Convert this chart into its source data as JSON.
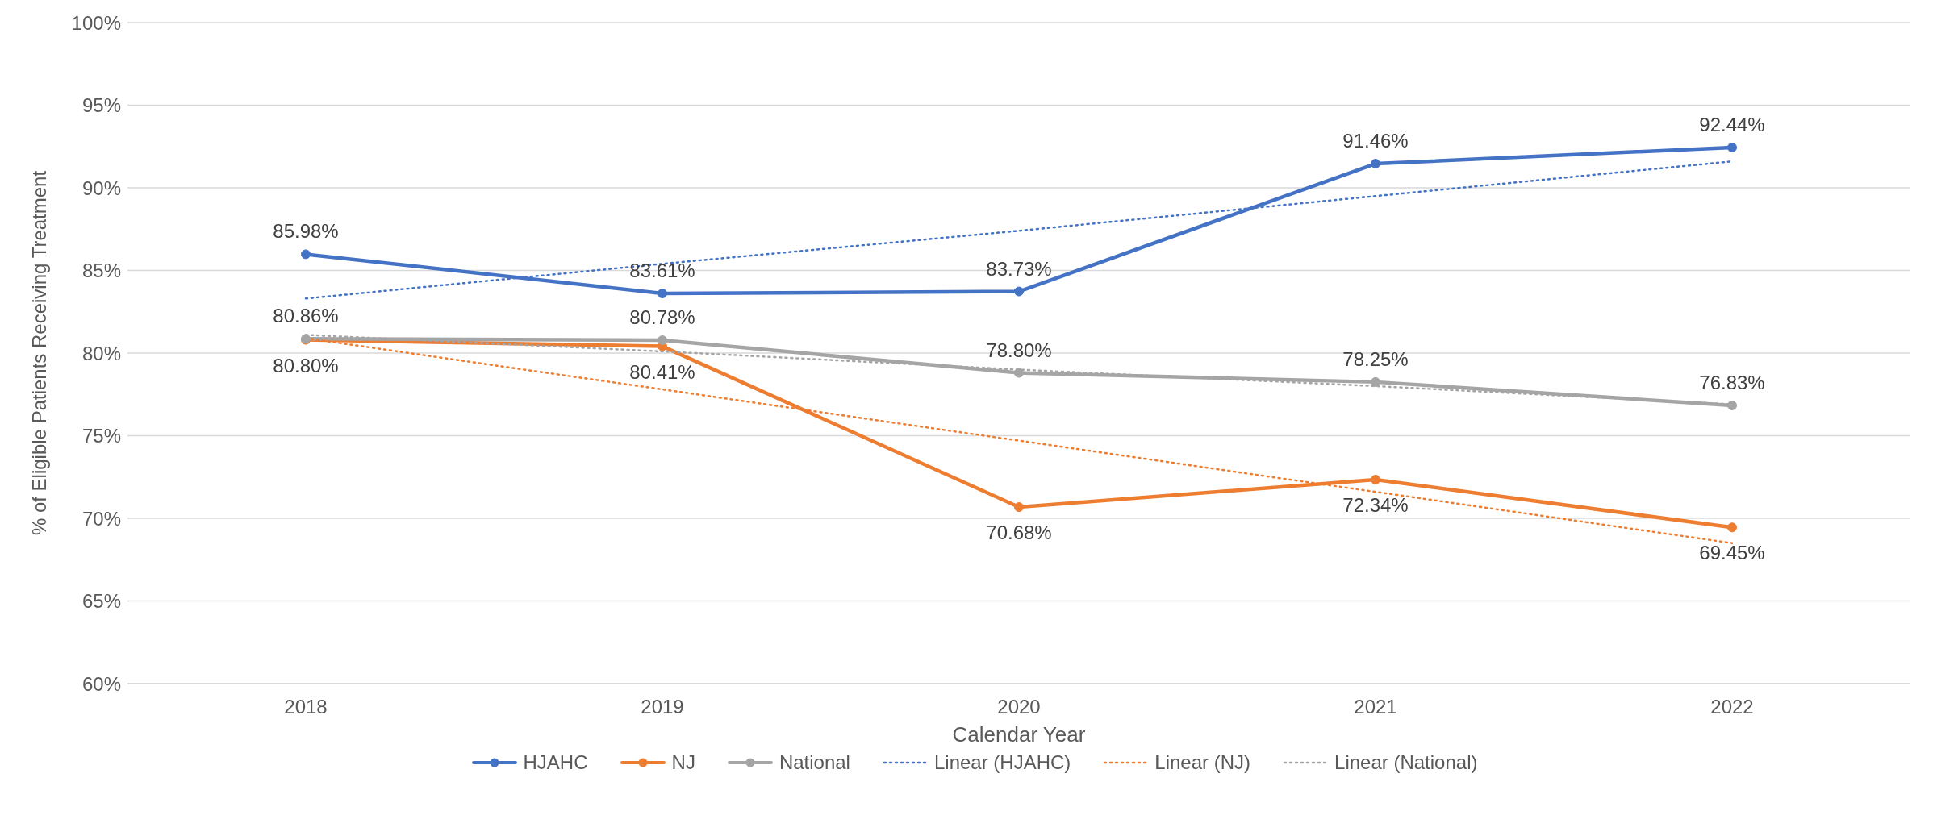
{
  "chart_data": {
    "type": "line",
    "xlabel": "Calendar Year",
    "ylabel": "% of Eligible Patients Receiving Treatment",
    "categories": [
      "2018",
      "2019",
      "2020",
      "2021",
      "2022"
    ],
    "series": [
      {
        "name": "HJAHC",
        "color": "#4472c4",
        "values": [
          85.98,
          83.61,
          83.73,
          91.46,
          92.44
        ],
        "value_labels": [
          "85.98%",
          "83.61%",
          "83.73%",
          "91.46%",
          "92.44%"
        ],
        "marker": "circle",
        "line_style": "solid"
      },
      {
        "name": "NJ",
        "color": "#ed7d31",
        "values": [
          80.8,
          80.41,
          70.68,
          72.34,
          69.45
        ],
        "value_labels": [
          "80.80%",
          "80.41%",
          "70.68%",
          "72.34%",
          "69.45%"
        ],
        "marker": "circle",
        "line_style": "solid"
      },
      {
        "name": "National",
        "color": "#a5a5a5",
        "values": [
          80.86,
          80.78,
          78.8,
          78.25,
          76.83
        ],
        "value_labels": [
          "80.86%",
          "80.78%",
          "78.80%",
          "78.25%",
          "76.83%"
        ],
        "marker": "circle",
        "line_style": "solid"
      },
      {
        "name": "Linear (HJAHC)",
        "color": "#4472c4",
        "values": [
          83.3,
          85.4,
          87.4,
          89.5,
          91.6
        ],
        "marker": "none",
        "line_style": "dotted"
      },
      {
        "name": "Linear (NJ)",
        "color": "#ed7d31",
        "values": [
          80.9,
          77.8,
          74.7,
          71.6,
          68.5
        ],
        "marker": "none",
        "line_style": "dotted"
      },
      {
        "name": "Linear (National)",
        "color": "#a5a5a5",
        "values": [
          81.1,
          80.1,
          79.0,
          78.0,
          76.9
        ],
        "marker": "none",
        "line_style": "dotted"
      }
    ],
    "ylim": [
      60,
      100
    ],
    "yticks": [
      {
        "value": 60,
        "label": "60%"
      },
      {
        "value": 65,
        "label": "65%"
      },
      {
        "value": 70,
        "label": "70%"
      },
      {
        "value": 75,
        "label": "75%"
      },
      {
        "value": 80,
        "label": "80%"
      },
      {
        "value": 85,
        "label": "85%"
      },
      {
        "value": 90,
        "label": "90%"
      },
      {
        "value": 95,
        "label": "95%"
      },
      {
        "value": 100,
        "label": "100%"
      }
    ],
    "grid": "y",
    "legend": "bottom"
  }
}
